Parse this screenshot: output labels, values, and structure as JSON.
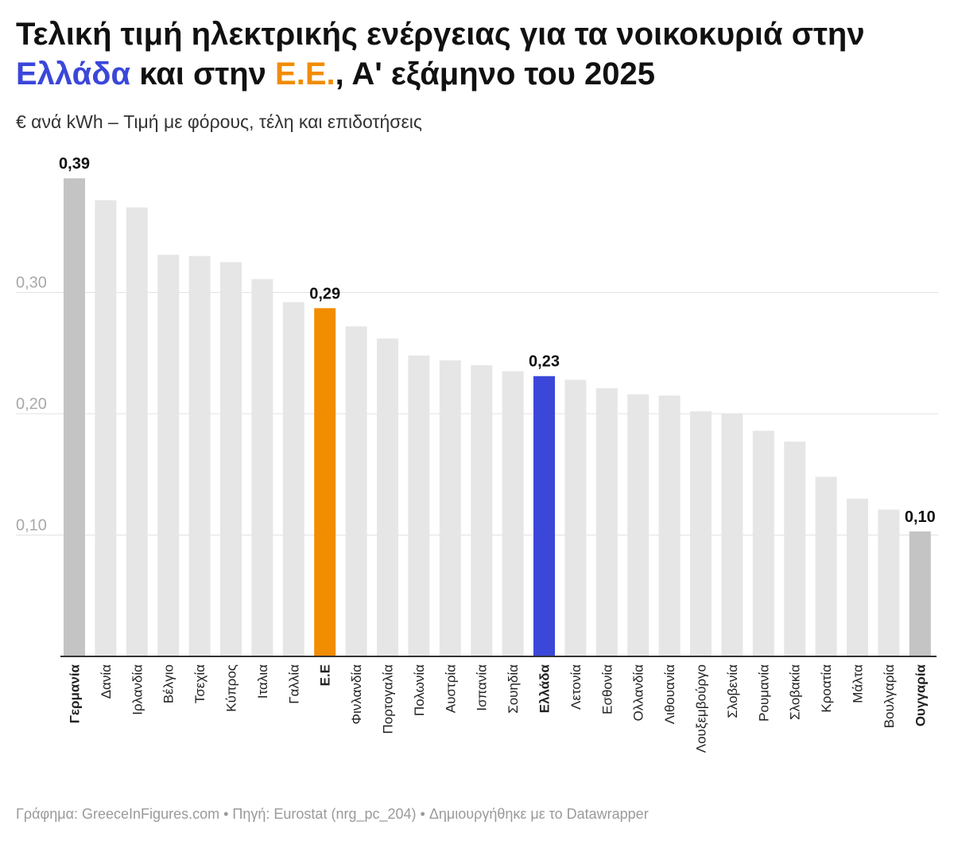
{
  "title": {
    "part1": "Τελική τιμή ηλεκτρικής ενέργειας για τα νοικοκυριά στην ",
    "greece": "Ελλάδα",
    "part2": " και στην ",
    "eu": "Ε.Ε.",
    "part3": ", Α' εξάμηνο του 2025"
  },
  "subtitle": "€ ανά kWh – Τιμή με φόρους, τέλη και επιδοτήσεις",
  "footer": "Γράφημα: GreeceInFigures.com • Πηγή: Eurostat (nrg_pc_204) • Δημιουργήθηκε με το Datawrapper",
  "colors": {
    "default": "#e6e6e6",
    "extreme": "#c4c4c4",
    "eu": "#f28c00",
    "greece": "#3b47d9",
    "grid": "#e2e2e2",
    "axis": "#333333",
    "tick_label": "#a8a8a8"
  },
  "chart_data": {
    "type": "bar",
    "title": "Τελική τιμή ηλεκτρικής ενέργειας για τα νοικοκυριά στην Ελλάδα και στην Ε.Ε., Α' εξάμηνο του 2025",
    "ylabel": "€ ανά kWh",
    "xlabel": "",
    "ylim": [
      0,
      0.4
    ],
    "yticks": [
      0.1,
      0.2,
      0.3
    ],
    "ytick_labels": [
      "0,10",
      "0,20",
      "0,30"
    ],
    "categories": [
      "Γερμανία",
      "Δανία",
      "Ιρλανδία",
      "Βέλγιο",
      "Τσεχία",
      "Κύπρος",
      "Ιταλια",
      "Γαλλία",
      "Ε.Ε",
      "Φινλανδία",
      "Πορτογαλία",
      "Πολωνία",
      "Αυστρία",
      "Ισπανία",
      "Σουηδία",
      "Ελλάδα",
      "Λετονία",
      "Εσθονία",
      "Ολλανδία",
      "Λιθουανία",
      "Λουξεμβούργο",
      "Σλοβενία",
      "Ρουμανία",
      "Σλοβακία",
      "Κροατία",
      "Μάλτα",
      "Βουλγαρία",
      "Ουγγαρία"
    ],
    "values": [
      0.394,
      0.376,
      0.37,
      0.331,
      0.33,
      0.325,
      0.311,
      0.292,
      0.287,
      0.272,
      0.262,
      0.248,
      0.244,
      0.24,
      0.235,
      0.231,
      0.228,
      0.221,
      0.216,
      0.215,
      0.202,
      0.2,
      0.186,
      0.177,
      0.148,
      0.13,
      0.121,
      0.103
    ],
    "highlight": [
      "extreme",
      "default",
      "default",
      "default",
      "default",
      "default",
      "default",
      "default",
      "eu",
      "default",
      "default",
      "default",
      "default",
      "default",
      "default",
      "greece",
      "default",
      "default",
      "default",
      "default",
      "default",
      "default",
      "default",
      "default",
      "default",
      "default",
      "default",
      "extreme"
    ],
    "bold_labels": [
      0,
      8,
      15,
      27
    ],
    "value_labels": [
      {
        "index": 0,
        "text": "0,39"
      },
      {
        "index": 8,
        "text": "0,29"
      },
      {
        "index": 15,
        "text": "0,23"
      },
      {
        "index": 27,
        "text": "0,10"
      }
    ]
  }
}
